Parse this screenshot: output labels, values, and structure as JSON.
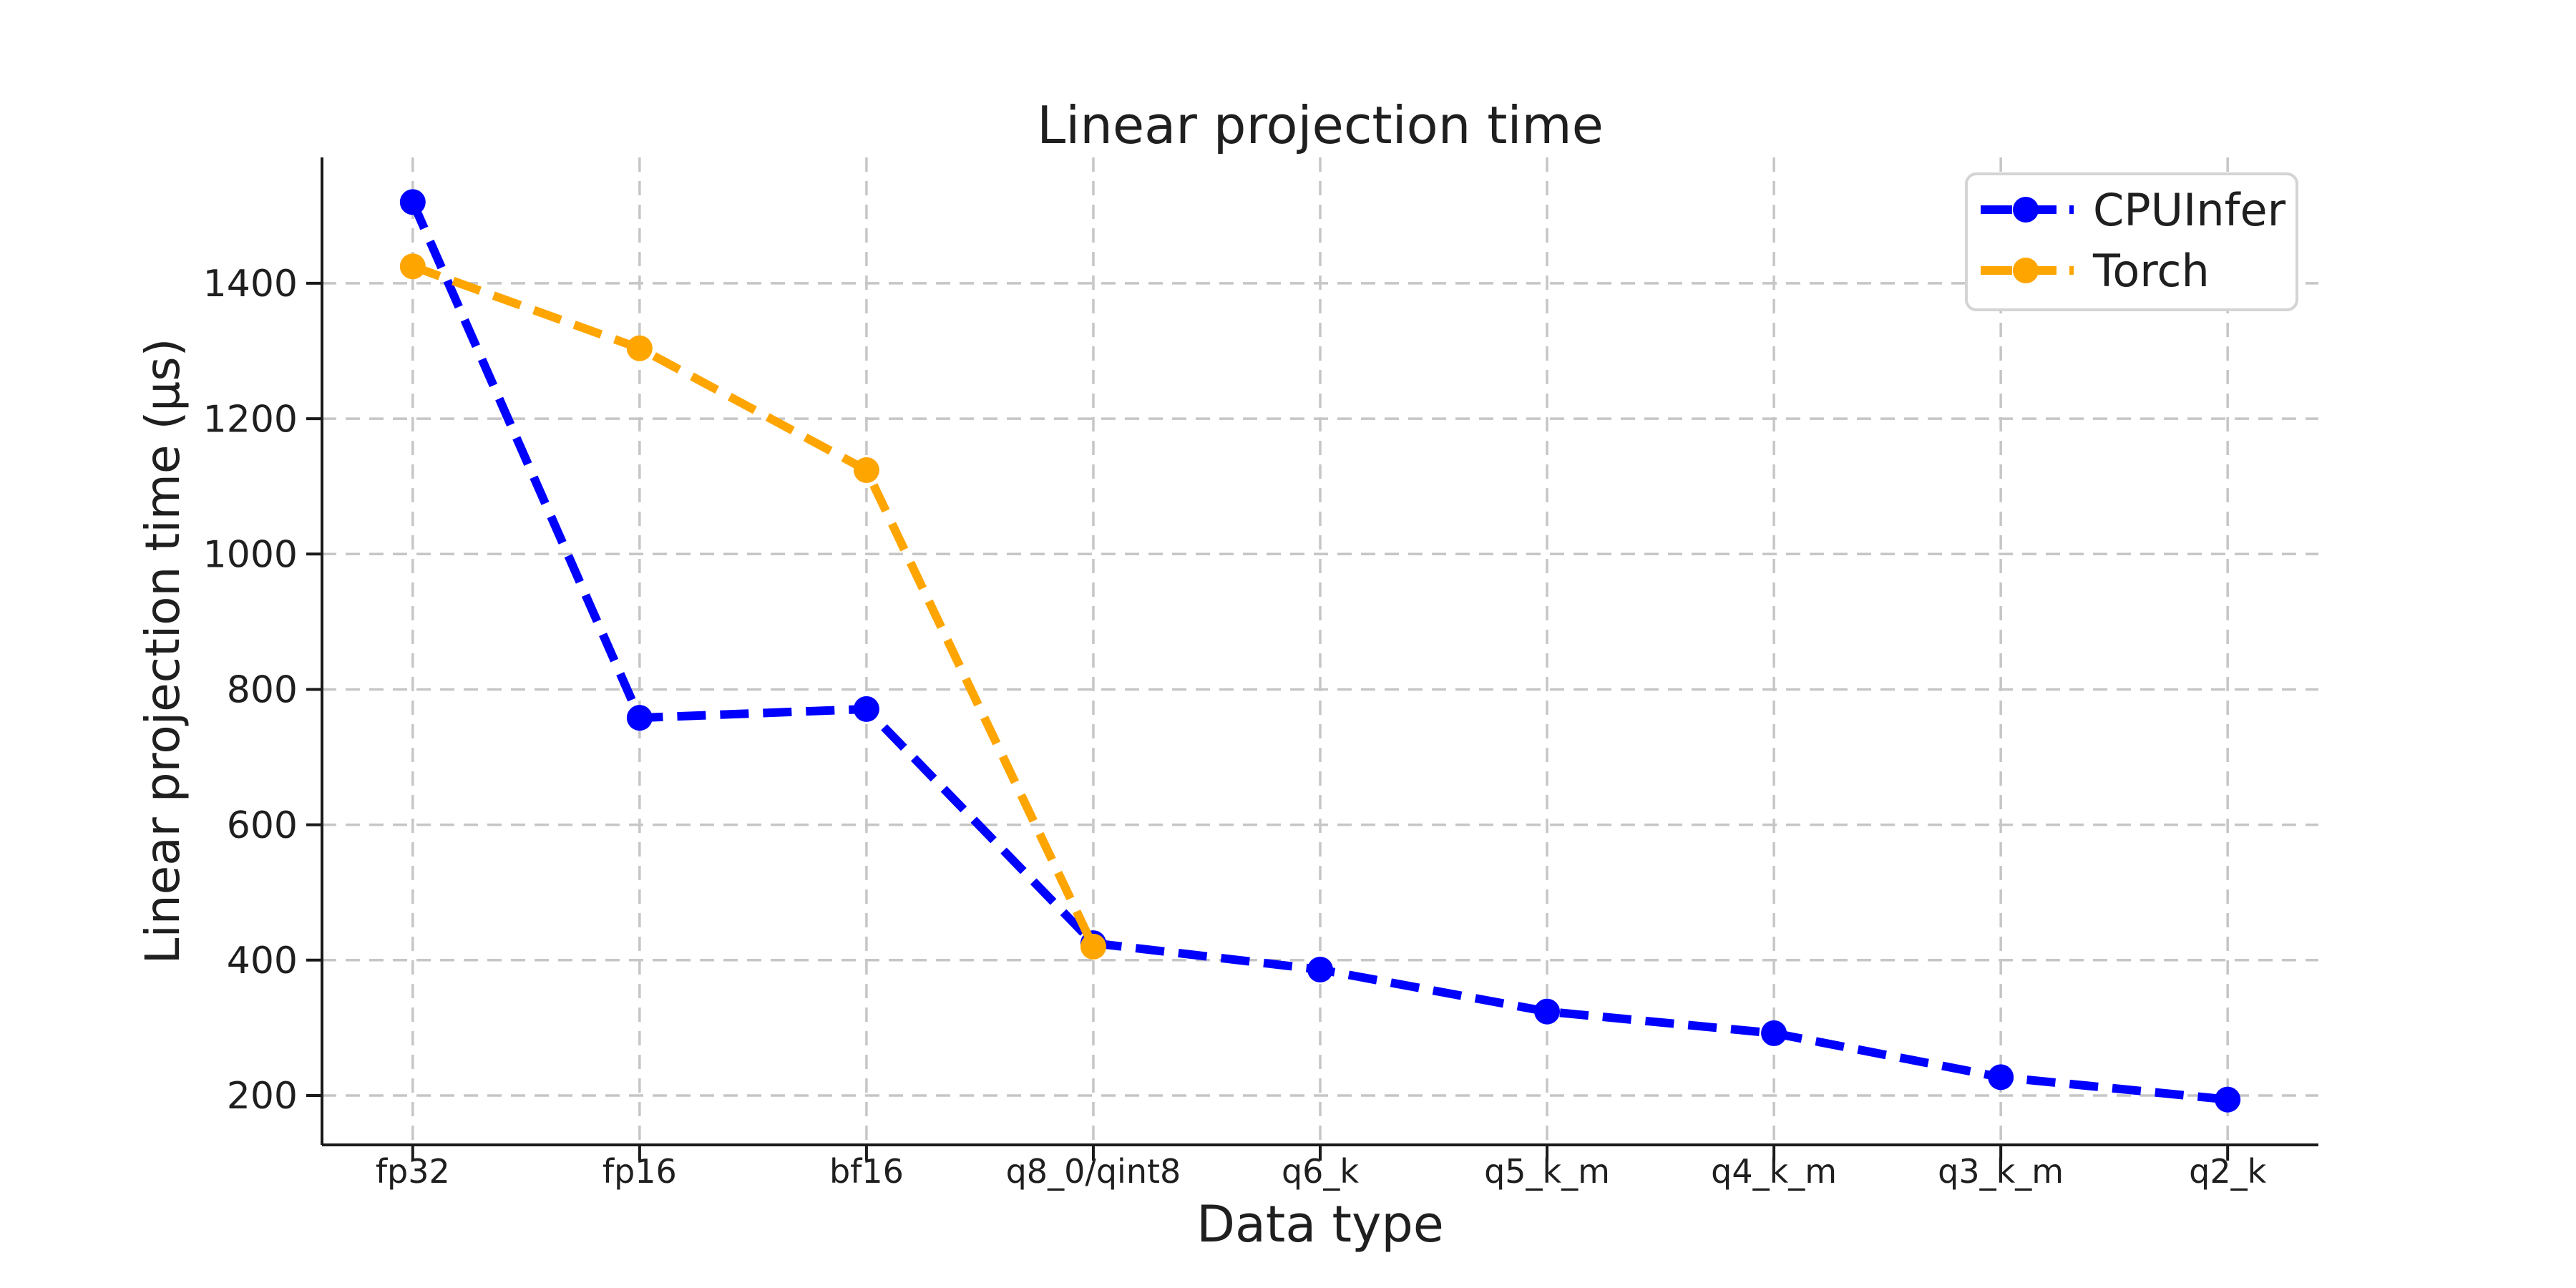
{
  "figure": {
    "background": "#ffffff"
  },
  "chart_data": {
    "type": "line",
    "title": "Linear projection time",
    "xlabel": "Data type",
    "ylabel": "Linear projection time (μs)",
    "categories": [
      "fp32",
      "fp16",
      "bf16",
      "q8_0/qint8",
      "q6_k",
      "q5_k_m",
      "q4_k_m",
      "q3_k_m",
      "q2_k"
    ],
    "series": [
      {
        "name": "CPUInfer",
        "color": "#0000ff",
        "linestyle": "dashed",
        "marker": "circle",
        "values": [
          1520,
          758,
          771,
          425,
          386,
          324,
          292,
          227,
          194
        ]
      },
      {
        "name": "Torch",
        "color": "#ffa500",
        "linestyle": "dashed",
        "marker": "circle",
        "values": [
          1425,
          1304,
          1124,
          420,
          null,
          null,
          null,
          null,
          null
        ]
      }
    ],
    "yticks": [
      200,
      400,
      600,
      800,
      1000,
      1200,
      1400
    ],
    "ylim": [
      127,
      1586
    ],
    "grid": true,
    "grid_style": "dashed",
    "legend_position": "upper right",
    "colors": {
      "axis": "#1a1a1a",
      "grid": "#c6c6c6",
      "text": "#1f1f1f",
      "legend_border": "#d4d4d4",
      "legend_background": "#ffffff"
    }
  }
}
